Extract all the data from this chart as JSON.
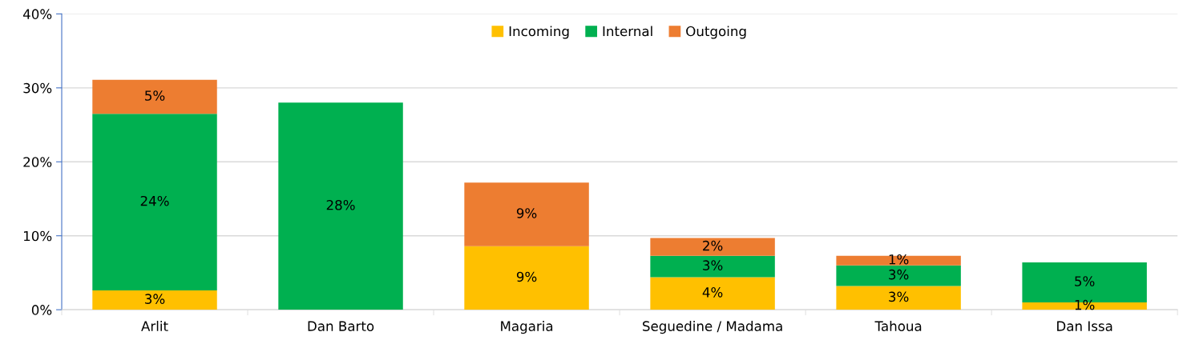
{
  "chart_data": {
    "type": "bar",
    "stacked": true,
    "categories": [
      "Arlit",
      "Dan Barto",
      "Magaria",
      "Seguedine / Madama",
      "Tahoua",
      "Dan Issa"
    ],
    "series": [
      {
        "name": "Incoming",
        "color": "#ffc000",
        "values": [
          2.6,
          0,
          8.6,
          4.4,
          3.2,
          1.0
        ],
        "value_labels": [
          "3%",
          null,
          "9%",
          "4%",
          "3%",
          "1%"
        ]
      },
      {
        "name": "Internal",
        "color": "#00b050",
        "values": [
          23.9,
          28.0,
          0,
          2.9,
          2.8,
          5.4
        ],
        "value_labels": [
          "24%",
          "28%",
          null,
          "3%",
          "3%",
          "5%"
        ]
      },
      {
        "name": "Outgoing",
        "color": "#ed7d31",
        "values": [
          4.6,
          0,
          8.6,
          2.4,
          1.3,
          0
        ],
        "value_labels": [
          "5%",
          null,
          "9%",
          "2%",
          "1%",
          null
        ]
      }
    ],
    "ylim": [
      0,
      40
    ],
    "yticks": [
      {
        "value": 0,
        "label": "0%"
      },
      {
        "value": 10,
        "label": "10%"
      },
      {
        "value": 20,
        "label": "20%"
      },
      {
        "value": 30,
        "label": "30%"
      },
      {
        "value": 40,
        "label": "40%"
      }
    ],
    "grid": "y",
    "legend": "top"
  }
}
